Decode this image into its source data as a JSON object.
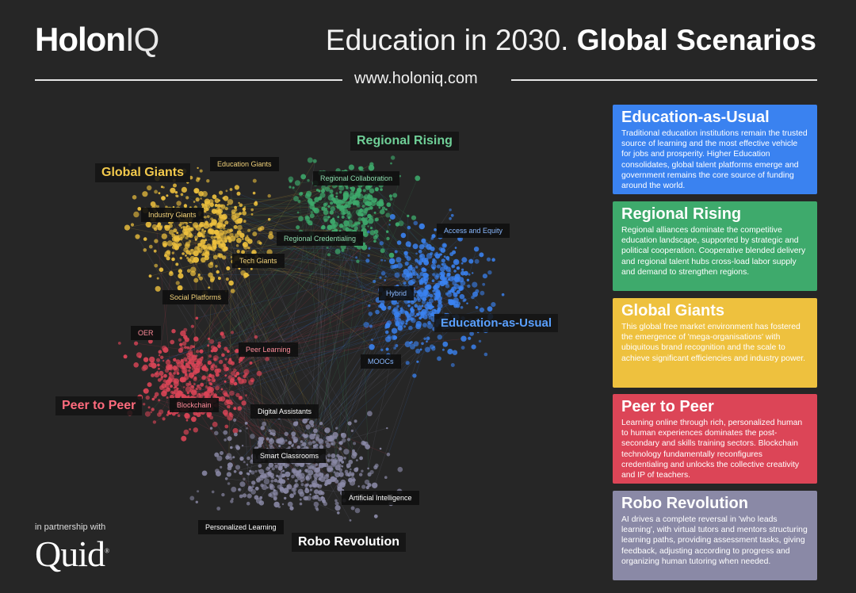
{
  "header": {
    "brand_bold": "Holon",
    "brand_light": "IQ",
    "title_light": "Education in 2030.",
    "title_bold": "Global Scenarios",
    "url": "www.holoniq.com"
  },
  "colors": {
    "background": "#262626",
    "education_as_usual": "#3a82f0",
    "regional_rising": "#3eaa6c",
    "global_giants": "#eec13e",
    "peer_to_peer": "#dc4557",
    "robo_revolution": "#8a89a6"
  },
  "network": {
    "clusters": [
      {
        "label": "Global Giants",
        "color": "#f2c94c"
      },
      {
        "label": "Regional Rising",
        "color": "#6fcf97"
      },
      {
        "label": "Education-as-Usual",
        "color": "#5aa0ff"
      },
      {
        "label": "Peer to Peer",
        "color": "#ff6b7d"
      },
      {
        "label": "Robo Revolution",
        "color": "#ffffff"
      }
    ],
    "tags": [
      {
        "label": "Education Giants",
        "color": "#f2d27a"
      },
      {
        "label": "Regional Collaboration",
        "color": "#8fdcae"
      },
      {
        "label": "Industry Giants",
        "color": "#f2d27a"
      },
      {
        "label": "Regional Credentialing",
        "color": "#8fdcae"
      },
      {
        "label": "Access and Equity",
        "color": "#8ab9ff"
      },
      {
        "label": "Tech Giants",
        "color": "#f2d27a"
      },
      {
        "label": "Hybrid",
        "color": "#8ab9ff"
      },
      {
        "label": "Social Platforms",
        "color": "#f2d27a"
      },
      {
        "label": "OER",
        "color": "#ff8d9b"
      },
      {
        "label": "Peer Learning",
        "color": "#ff8d9b"
      },
      {
        "label": "MOOCs",
        "color": "#8ab9ff"
      },
      {
        "label": "Blockchain",
        "color": "#ff8d9b"
      },
      {
        "label": "Digital Assistants",
        "color": "#ffffff"
      },
      {
        "label": "Smart Classrooms",
        "color": "#ffffff"
      },
      {
        "label": "Artificial Intelligence",
        "color": "#ffffff"
      },
      {
        "label": "Personalized Learning",
        "color": "#ffffff"
      }
    ]
  },
  "scenarios": [
    {
      "title": "Education-as-Usual",
      "color": "#3a82f0",
      "text": "Traditional education institutions remain the trusted source of learning and the most effective vehicle for jobs and prosperity. Higher Education consolidates, global talent platforms emerge and government remains the core source of funding around the world."
    },
    {
      "title": "Regional Rising",
      "color": "#3eaa6c",
      "text": "Regional alliances dominate the competitive education landscape, supported by strategic and political cooperation. Cooperative blended delivery and regional talent hubs cross-load labor supply and demand to strengthen regions."
    },
    {
      "title": "Global Giants",
      "color": "#eec13e",
      "text": "This global free market environment has fostered the emergence of 'mega-organisations' with ubiquitous brand recognition and the scale to achieve significant efficiencies and industry power."
    },
    {
      "title": "Peer to Peer",
      "color": "#dc4557",
      "text": "Learning online through rich, personalized human to human experiences dominates the post-secondary and skills training sectors. Blockchain technology fundamentally reconfigures credentialing and unlocks the collective creativity and IP of teachers."
    },
    {
      "title": "Robo Revolution",
      "color": "#8a89a6",
      "text": "AI drives a complete reversal in 'who leads learning', with virtual tutors and mentors structuring learning paths, providing assessment tasks, giving feedback, adjusting according to progress and organizing human tutoring when needed."
    }
  ],
  "partner": {
    "caption": "in partnership with",
    "logo_text": "Quid",
    "logo_mark": "®"
  }
}
